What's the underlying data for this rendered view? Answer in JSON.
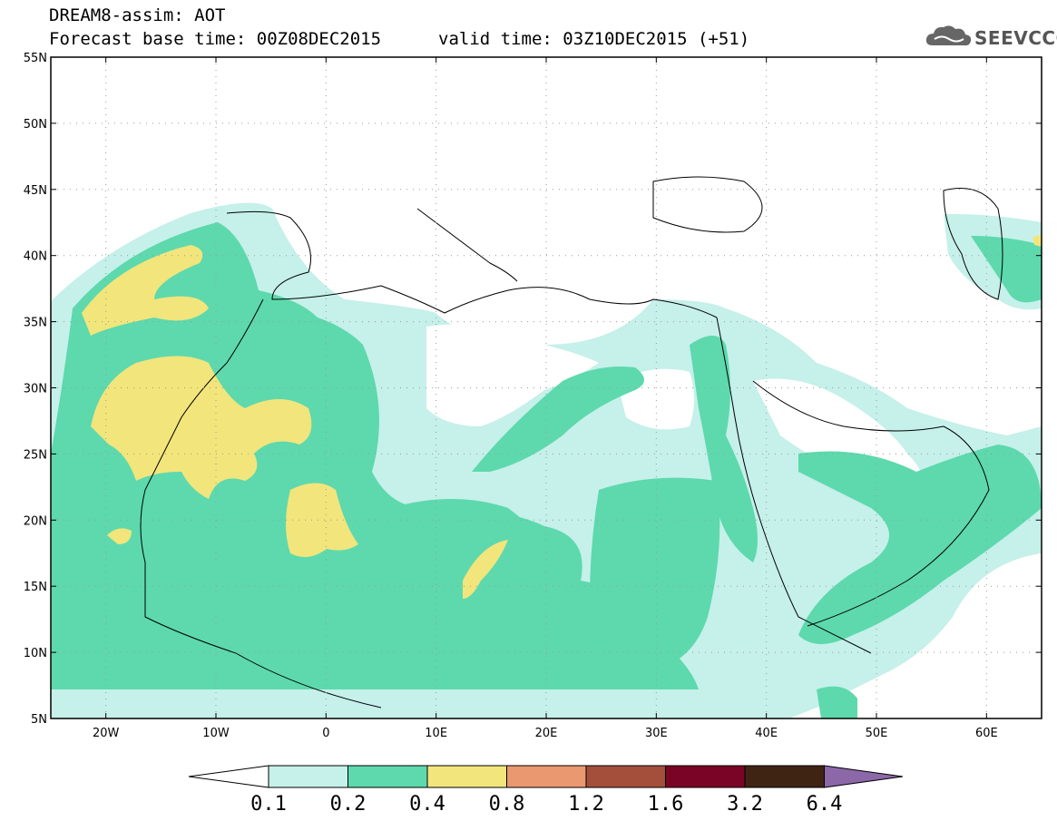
{
  "header": {
    "title": "DREAM8-assim: AOT",
    "forecast_base": "Forecast base time: 00Z08DEC2015",
    "valid_time": "valid time: 03Z10DEC2015 (+51)"
  },
  "logo": {
    "text": "SEEVCCC",
    "icon": "cloud-icon"
  },
  "map": {
    "lon_range": [
      -25,
      65
    ],
    "lat_range": [
      5,
      55
    ],
    "lat_ticks": [
      {
        "v": 55,
        "label": "55N"
      },
      {
        "v": 50,
        "label": "50N"
      },
      {
        "v": 45,
        "label": "45N"
      },
      {
        "v": 40,
        "label": "40N"
      },
      {
        "v": 35,
        "label": "35N"
      },
      {
        "v": 30,
        "label": "30N"
      },
      {
        "v": 25,
        "label": "25N"
      },
      {
        "v": 20,
        "label": "20N"
      },
      {
        "v": 15,
        "label": "15N"
      },
      {
        "v": 10,
        "label": "10N"
      },
      {
        "v": 5,
        "label": "5N"
      }
    ],
    "lon_ticks": [
      {
        "v": -20,
        "label": "20W"
      },
      {
        "v": -10,
        "label": "10W"
      },
      {
        "v": 0,
        "label": "0"
      },
      {
        "v": 10,
        "label": "10E"
      },
      {
        "v": 20,
        "label": "20E"
      },
      {
        "v": 30,
        "label": "30E"
      },
      {
        "v": 40,
        "label": "40E"
      },
      {
        "v": 50,
        "label": "50E"
      },
      {
        "v": 60,
        "label": "60E"
      }
    ]
  },
  "colorbar": {
    "levels": [
      "0.1",
      "0.2",
      "0.4",
      "0.8",
      "1.2",
      "1.6",
      "3.2",
      "6.4"
    ],
    "colors": [
      "#ffffff",
      "#c6f0ea",
      "#5dd9ad",
      "#f2e57c",
      "#ea9870",
      "#a44e3c",
      "#7a0425",
      "#3f2413",
      "#8c68a8"
    ]
  }
}
